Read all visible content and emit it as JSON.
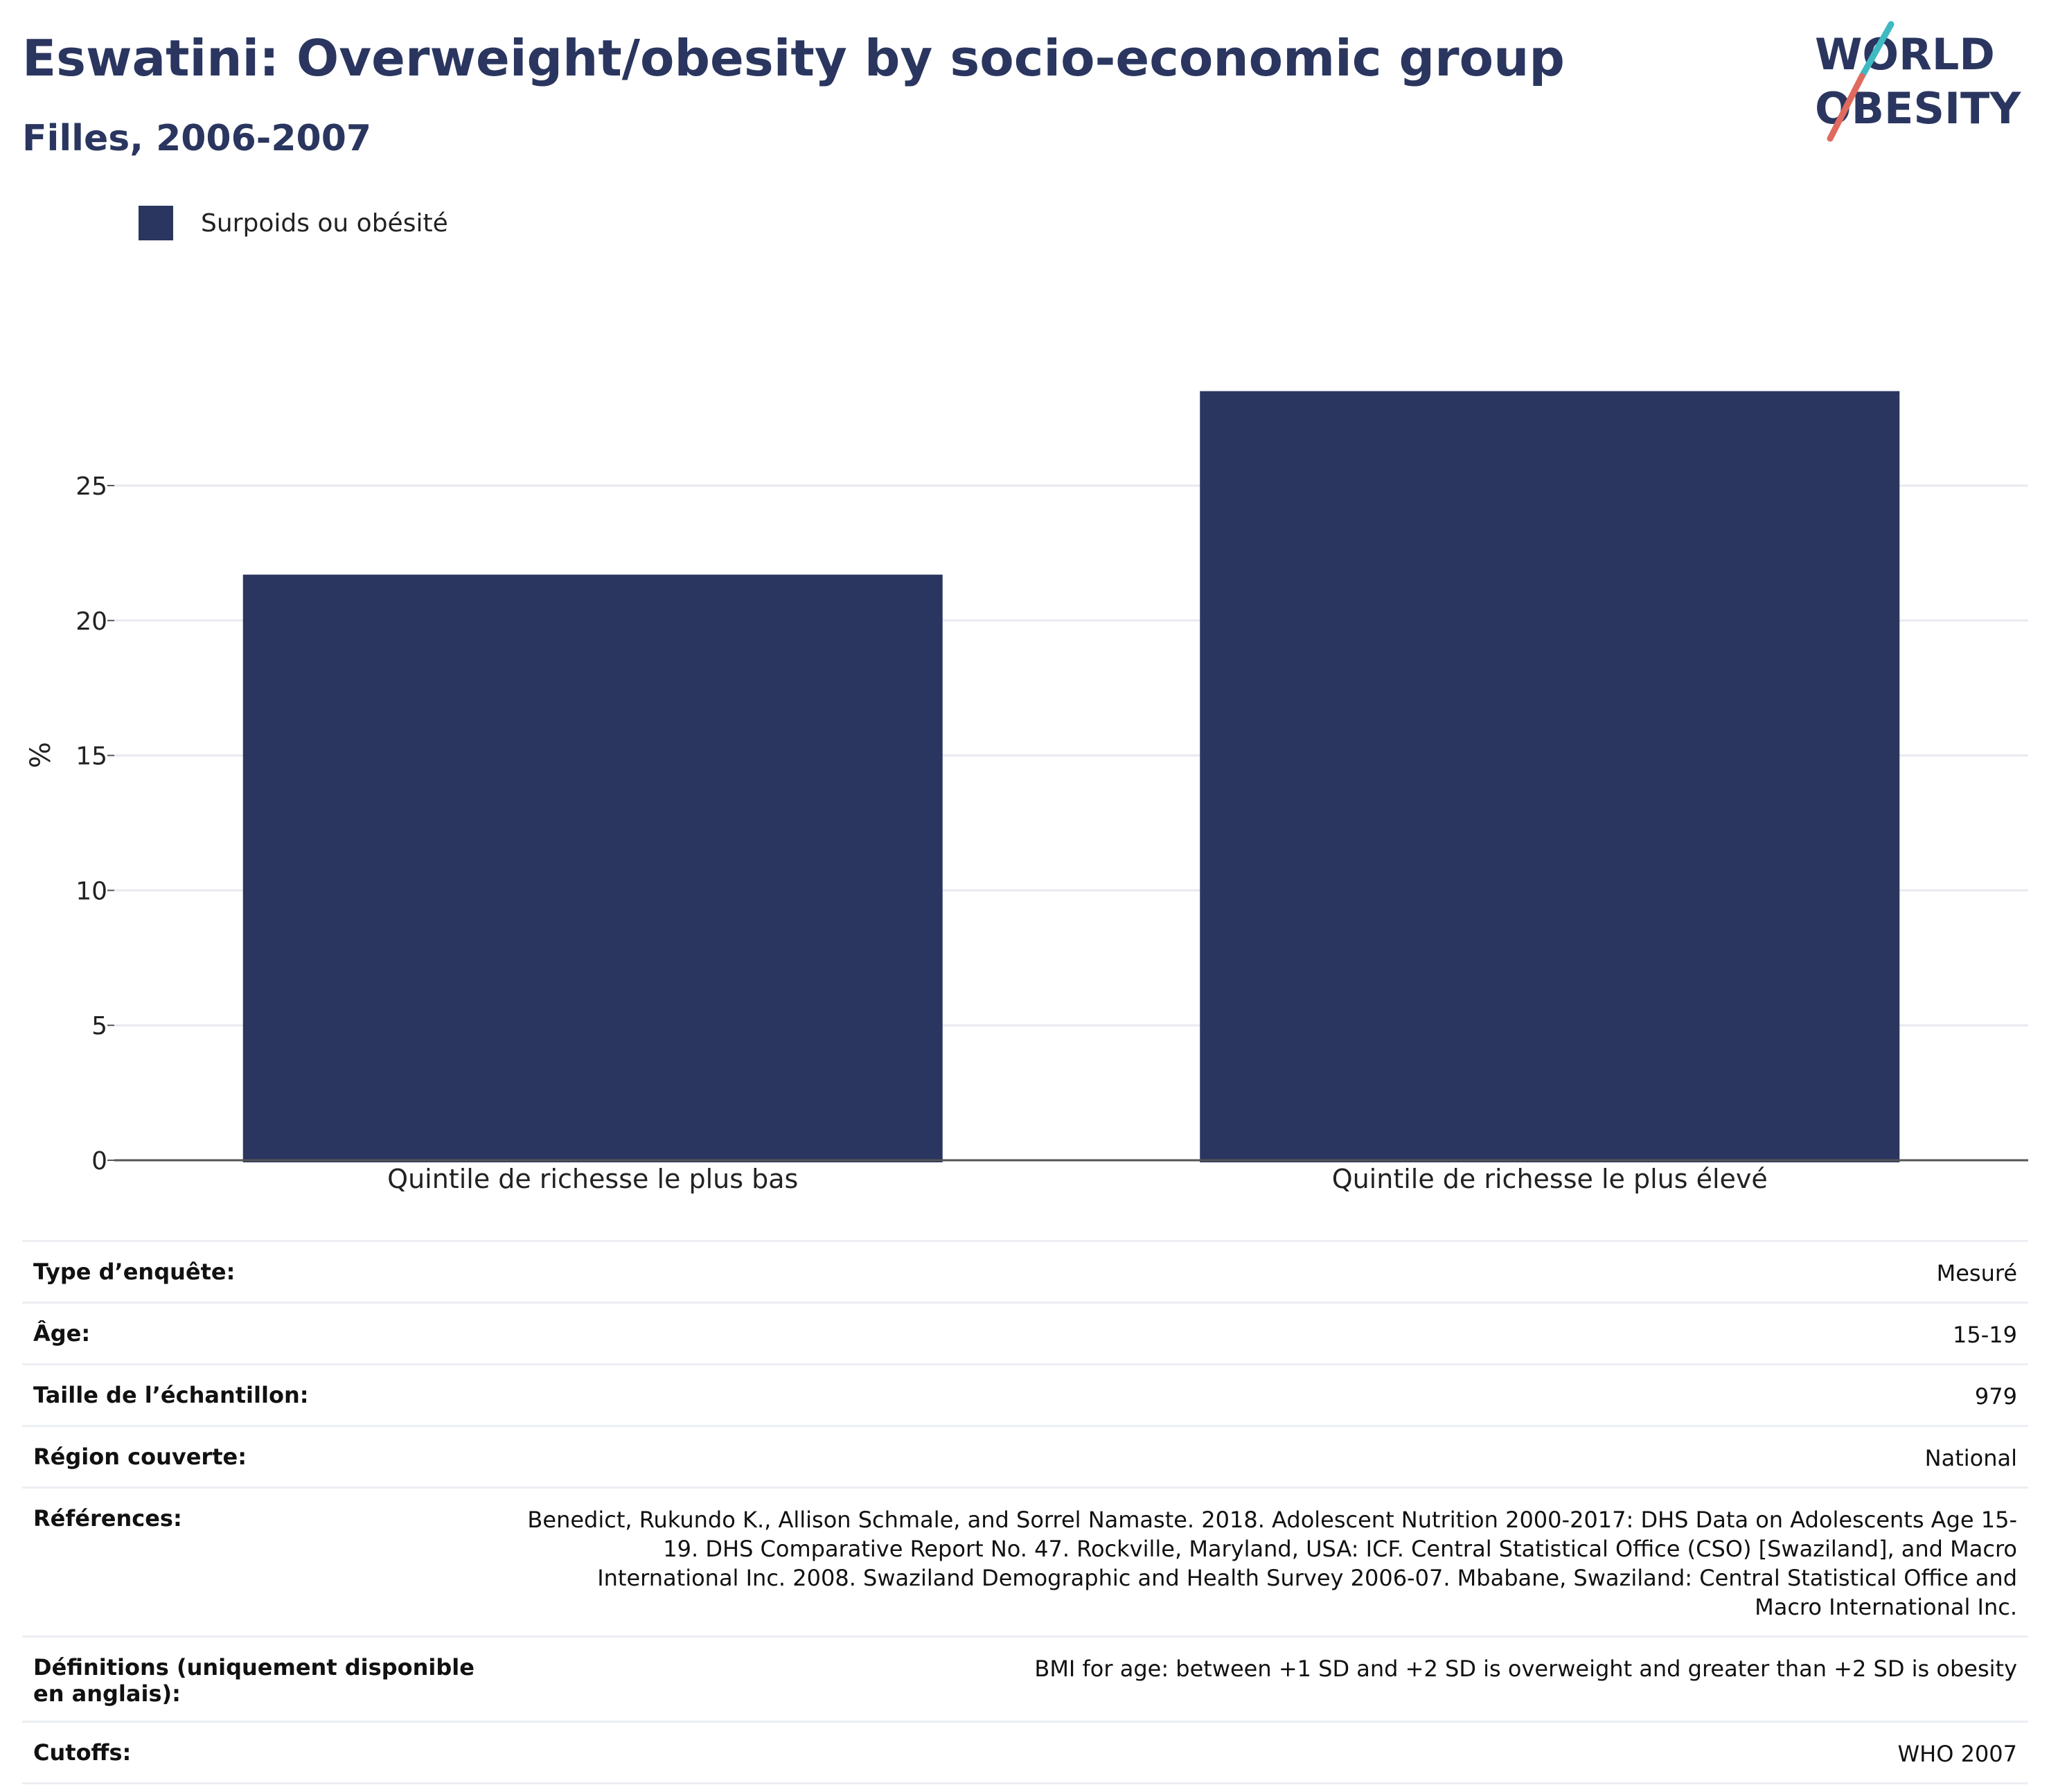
{
  "header": {
    "title": "Eswatini: Overweight/obesity by socio-economic group",
    "subtitle": "Filles, 2006-2007"
  },
  "logo": {
    "line1": "WORLD",
    "line2": "OBESITY"
  },
  "colors": {
    "bar": "#2a365f",
    "grid": "#e8eaf0",
    "axis": "#555555",
    "logo_teal": "#3fb9c2",
    "logo_coral": "#e06a5e"
  },
  "chart_data": {
    "type": "bar",
    "categories": [
      "Quintile de richesse le plus bas",
      "Quintile de richesse le plus élevé"
    ],
    "series": [
      {
        "name": "Surpoids ou obésité",
        "values": [
          21.7,
          28.5
        ]
      }
    ],
    "ylabel": "%",
    "ylim": [
      0,
      30
    ],
    "yticks": [
      0,
      5,
      10,
      15,
      20,
      25
    ],
    "grid": true,
    "legend_position": "top-left"
  },
  "info": [
    {
      "label": "Type d’enquête:",
      "value": "Mesuré"
    },
    {
      "label": "Âge:",
      "value": "15-19"
    },
    {
      "label": "Taille de l’échantillon:",
      "value": "979"
    },
    {
      "label": "Région couverte:",
      "value": "National"
    },
    {
      "label": "Références:",
      "value": "Benedict, Rukundo K., Allison Schmale, and Sorrel Namaste. 2018. Adolescent Nutrition 2000-2017: DHS Data on Adolescents Age 15-19. DHS Comparative Report No. 47. Rockville, Maryland, USA: ICF. Central Statistical Office (CSO) [Swaziland], and Macro International Inc. 2008. Swaziland Demographic and Health Survey 2006-07. Mbabane, Swaziland: Central Statistical Office and Macro International Inc."
    },
    {
      "label": "Définitions (uniquement disponible en anglais):",
      "value": "BMI for age: between +1 SD and +2 SD is overweight and greater than +2 SD is obesity"
    },
    {
      "label": "Cutoffs:",
      "value": "WHO 2007"
    }
  ]
}
